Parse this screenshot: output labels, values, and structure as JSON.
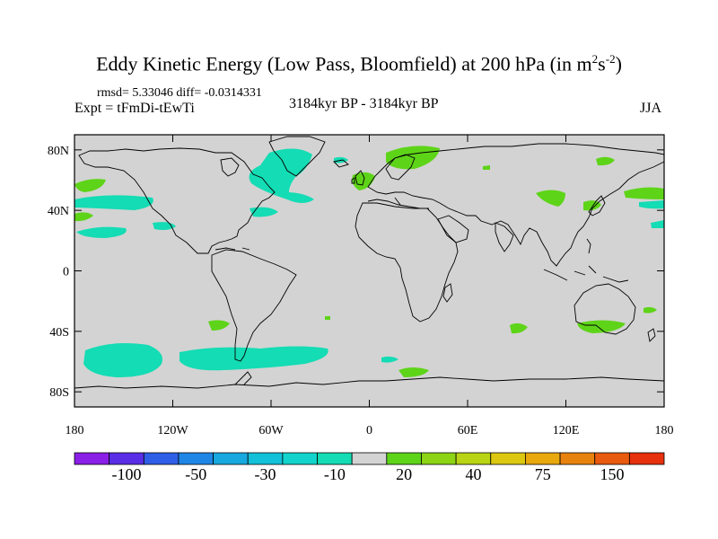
{
  "header": {
    "title_main": "Eddy Kinetic Energy (Low Pass, Bloomfield) at 200 hPa (in m",
    "title_sup1": "2",
    "title_mid": "s",
    "title_sup2": "-2",
    "title_end": ")",
    "rmsd_line": "rmsd= 5.33046 diff= -0.0314331",
    "expt_line": "Expt = tFmDi-tEwTi",
    "period_line": "3184kyr BP - 3184kyr BP",
    "season": "JJA"
  },
  "axes": {
    "y_labels": [
      "80N",
      "40N",
      "0",
      "40S",
      "80S"
    ],
    "y_values": [
      80,
      40,
      0,
      -40,
      -80
    ],
    "x_labels": [
      "180",
      "120W",
      "60W",
      "0",
      "60E",
      "120E",
      "180"
    ],
    "x_values": [
      -180,
      -120,
      -60,
      0,
      60,
      120,
      180
    ]
  },
  "colorbar": {
    "labels": [
      "-100",
      "-50",
      "-30",
      "-10",
      "20",
      "40",
      "75",
      "150"
    ],
    "label_box_index": [
      1.5,
      3.5,
      5.5,
      7.5,
      9.5,
      11.5,
      13.5,
      15.5
    ],
    "colors": [
      "#8a1fe6",
      "#5a2ee6",
      "#2f5fe6",
      "#1f86e6",
      "#17a8df",
      "#13c0d9",
      "#12d4cc",
      "#14dcb4",
      "#d3d3d3",
      "#5ed419",
      "#8cd414",
      "#b8d414",
      "#dcc810",
      "#e8a80e",
      "#e8820e",
      "#e85a0e",
      "#e6300e"
    ]
  },
  "map": {
    "background_color": "#d3d3d3",
    "positive_color": "#5ed419",
    "negative_color": "#14dcb4"
  }
}
